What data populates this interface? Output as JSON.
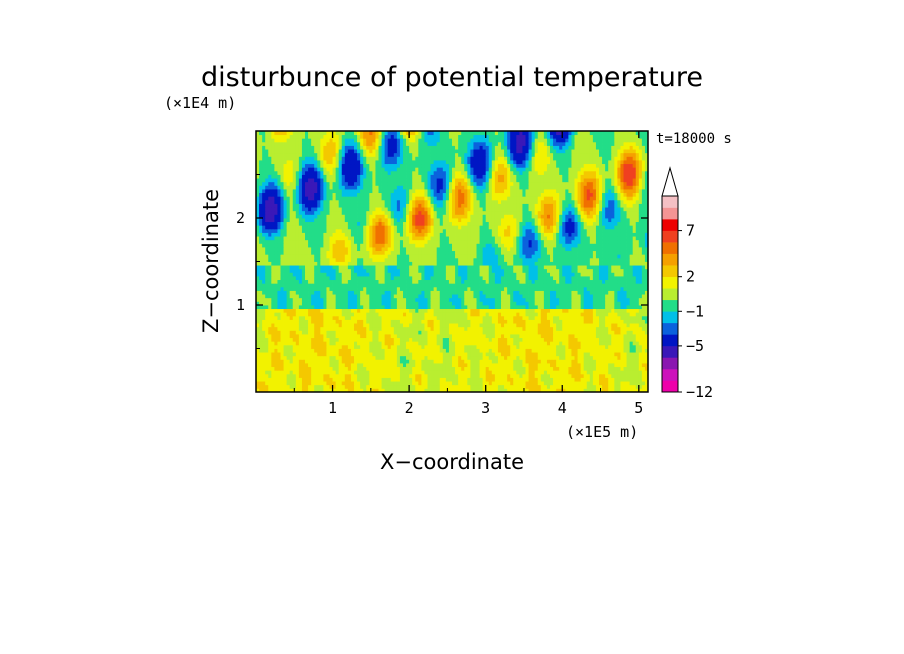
{
  "chart_data": {
    "type": "heatmap",
    "title": "disturbunce of potential temperature",
    "xlabel": "X−coordinate",
    "ylabel": "Z−coordinate",
    "x_unit": "(×1E5 m)",
    "y_unit": "(×1E4 m)",
    "time_label": "t=18000 s",
    "xlim": [
      0,
      5.12
    ],
    "ylim": [
      0,
      3.0
    ],
    "x_ticks": [
      1,
      2,
      3,
      4,
      5
    ],
    "x_tick_labels": [
      "1",
      "2",
      "3",
      "4",
      "5"
    ],
    "y_ticks": [
      1,
      2
    ],
    "y_tick_labels": [
      "1",
      "2"
    ],
    "colorbar": {
      "levels": [
        -12,
        -11,
        -9,
        -7,
        -5,
        -3,
        -2,
        -1,
        0,
        1,
        2,
        3,
        4,
        5,
        7,
        9,
        11
      ],
      "colors": [
        "#ee00aa",
        "#cc11bb",
        "#8a16b0",
        "#3a18b8",
        "#0016c4",
        "#0b62dd",
        "#00c0e8",
        "#22dd88",
        "#b9ee30",
        "#f2f200",
        "#f4c800",
        "#f5a000",
        "#f07000",
        "#f04020",
        "#ee0000",
        "#f49494",
        "#f5c0c4"
      ],
      "tick_labels": [
        "7",
        "2",
        "−1",
        "−5",
        "−12"
      ],
      "tick_values": [
        7,
        2,
        -1,
        -5,
        -12
      ],
      "extend": "max"
    },
    "field_description_levels": {
      "low_layer": "mostly 0 to 3 (yellow/orange) below z=1",
      "middle_layer": "about -1 to 0 (green) near z=1.0-1.3",
      "upper_layer": "wave pattern from -7 to 7 above z=1.5"
    }
  }
}
